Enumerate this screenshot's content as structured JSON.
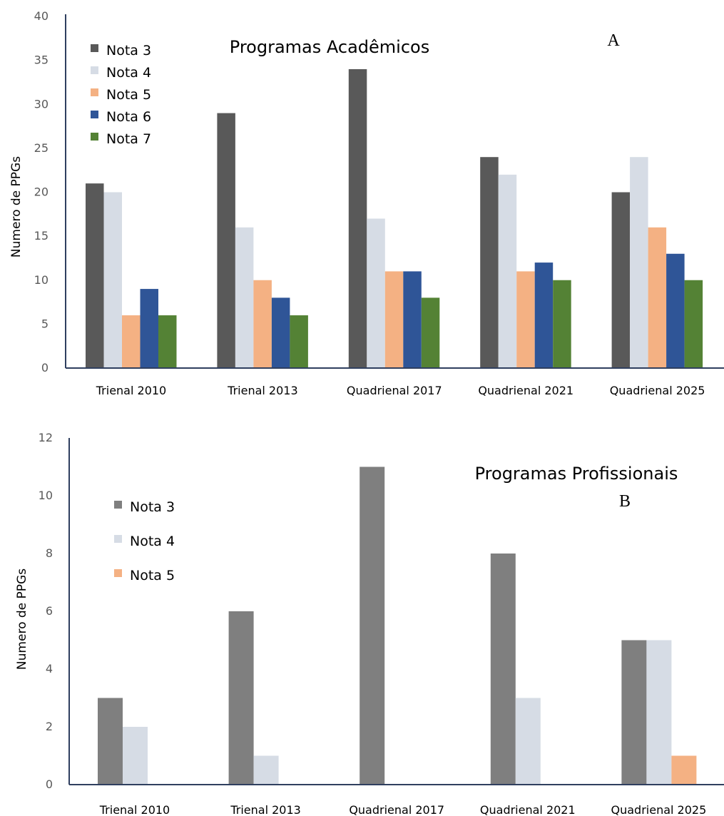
{
  "chart_data": [
    {
      "type": "bar",
      "title": "Programas Acadêmicos",
      "panel_label": "A",
      "ylabel": "Numero de PPGs",
      "xlabel": "",
      "ylim": [
        0,
        40
      ],
      "yticks": [
        0,
        5,
        10,
        15,
        20,
        25,
        30,
        35,
        40
      ],
      "grid": false,
      "legend_position": "top-left",
      "categories": [
        "Trienal 2010",
        "Trienal 2013",
        "Quadrienal 2017",
        "Quadrienal 2021",
        "Quadrienal 2025"
      ],
      "series": [
        {
          "name": "Nota 3",
          "color": "#595959",
          "values": [
            21,
            29,
            34,
            24,
            20
          ]
        },
        {
          "name": "Nota 4",
          "color": "#d6dce5",
          "values": [
            20,
            16,
            17,
            22,
            24
          ]
        },
        {
          "name": "Nota 5",
          "color": "#f4b183",
          "values": [
            6,
            10,
            11,
            11,
            16
          ]
        },
        {
          "name": "Nota 6",
          "color": "#2f5597",
          "values": [
            9,
            8,
            11,
            12,
            13
          ]
        },
        {
          "name": "Nota 7",
          "color": "#548235",
          "values": [
            6,
            6,
            8,
            10,
            10
          ]
        }
      ]
    },
    {
      "type": "bar",
      "title": "Programas Profissionais",
      "panel_label": "B",
      "ylabel": "Numero de PPGs",
      "xlabel": "",
      "ylim": [
        0,
        12
      ],
      "yticks": [
        0,
        2,
        4,
        6,
        8,
        10,
        12
      ],
      "grid": false,
      "legend_position": "left",
      "categories": [
        "Trienal 2010",
        "Trienal 2013",
        "Quadrienal 2017",
        "Quadrienal 2021",
        "Quadrienal 2025"
      ],
      "series": [
        {
          "name": "Nota 3",
          "color": "#7f7f7f",
          "values": [
            3,
            6,
            11,
            8,
            5
          ]
        },
        {
          "name": "Nota 4",
          "color": "#d6dce5",
          "values": [
            2,
            1,
            0,
            3,
            5
          ]
        },
        {
          "name": "Nota 5",
          "color": "#f4b183",
          "values": [
            0,
            0,
            0,
            0,
            1
          ]
        }
      ]
    }
  ]
}
